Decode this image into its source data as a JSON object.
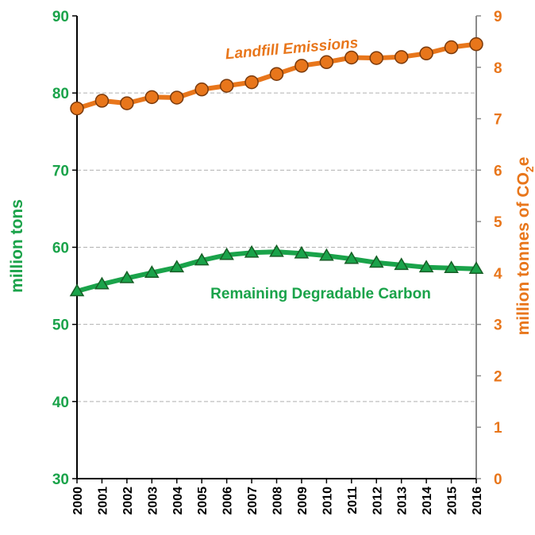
{
  "chart_data": {
    "type": "line",
    "x": [
      2000,
      2001,
      2002,
      2003,
      2004,
      2005,
      2006,
      2007,
      2008,
      2009,
      2010,
      2011,
      2012,
      2013,
      2014,
      2015,
      2016
    ],
    "x_tick_labels": [
      "2000",
      "2001",
      "2002",
      "2003",
      "2004",
      "2005",
      "2006",
      "2007",
      "2008",
      "2009",
      "2010",
      "2011",
      "2012",
      "2013",
      "2014",
      "2015",
      "2016"
    ],
    "y_left": {
      "label": "million tons",
      "range": [
        30,
        90
      ],
      "ticks": [
        30,
        40,
        50,
        60,
        70,
        80,
        90
      ],
      "tick_labels": [
        "30",
        "40",
        "50",
        "60",
        "70",
        "80",
        "90"
      ]
    },
    "y_right": {
      "label_main": "million tonnes of CO",
      "label_sub": "2",
      "label_tail": "e",
      "range": [
        0,
        9
      ],
      "ticks": [
        0,
        1,
        2,
        3,
        4,
        5,
        6,
        7,
        8,
        9
      ],
      "tick_labels": [
        "0",
        "1",
        "2",
        "3",
        "4",
        "5",
        "6",
        "7",
        "8",
        "9"
      ]
    },
    "grid": "horizontal dashed",
    "series": [
      {
        "name": "Landfill Emissions",
        "axis": "right",
        "color": "#e8761b",
        "marker": "circle",
        "values": [
          7.2,
          7.35,
          7.3,
          7.42,
          7.41,
          7.57,
          7.64,
          7.71,
          7.87,
          8.03,
          8.1,
          8.19,
          8.18,
          8.2,
          8.27,
          8.39,
          8.45
        ]
      },
      {
        "name": "Remaining Degradable Carbon",
        "axis": "left",
        "color": "#1aa34a",
        "marker": "triangle",
        "values": [
          54.3,
          55.2,
          56.0,
          56.7,
          57.4,
          58.3,
          59.0,
          59.3,
          59.4,
          59.2,
          58.9,
          58.5,
          58.0,
          57.7,
          57.4,
          57.3,
          57.2
        ]
      }
    ]
  }
}
